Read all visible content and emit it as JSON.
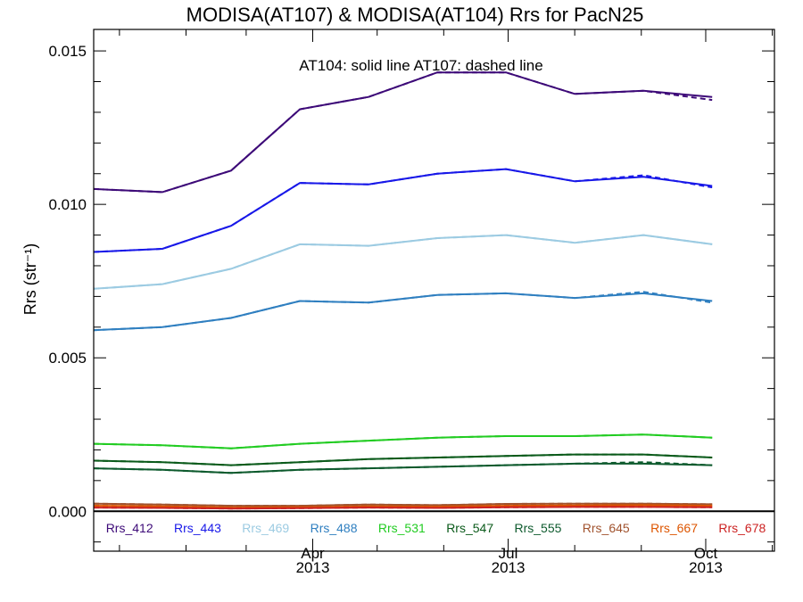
{
  "chart_data": {
    "type": "line",
    "title": "MODISA(AT107) & MODISA(AT104)  Rrs for PacN25",
    "ylabel": "Rrs (str⁻¹)",
    "xlabel": "",
    "annotation": "AT104: solid line   AT107: dashed line",
    "ylim": [
      -0.0013,
      0.0157
    ],
    "xlim": [
      "2012-12-20",
      "2013-11-02"
    ],
    "y_ticks": [
      "0.000",
      "0.005",
      "0.010",
      "0.015"
    ],
    "y_tick_values": [
      0.0,
      0.005,
      0.01,
      0.015
    ],
    "x_ticks": [
      {
        "date": "2013-04-01",
        "month": "Apr",
        "year": "2013"
      },
      {
        "date": "2013-07-01",
        "month": "Jul",
        "year": "2013"
      },
      {
        "date": "2013-10-01",
        "month": "Oct",
        "year": "2013"
      }
    ],
    "x": [
      "2012-12-20",
      "2013-01-21",
      "2013-02-22",
      "2013-03-26",
      "2013-04-27",
      "2013-05-29",
      "2013-06-30",
      "2013-08-01",
      "2013-09-02",
      "2013-10-04",
      "2013-11-02"
    ],
    "zero_line": true,
    "series": [
      {
        "name": "Rrs_412",
        "color": "#3d0a78",
        "solid": [
          0.0105,
          0.0104,
          0.0111,
          0.0131,
          0.0135,
          0.0143,
          0.0143,
          0.0136,
          0.0137,
          0.0135,
          null
        ],
        "dashed": [
          0.0105,
          0.0104,
          0.0111,
          0.0131,
          0.0135,
          0.0143,
          0.0143,
          0.0136,
          0.0137,
          0.0134,
          null
        ]
      },
      {
        "name": "Rrs_443",
        "color": "#1818e8",
        "solid": [
          0.00845,
          0.00855,
          0.0093,
          0.0107,
          0.01065,
          0.011,
          0.01115,
          0.01075,
          0.0109,
          0.0106,
          null
        ],
        "dashed": [
          0.00845,
          0.00855,
          0.0093,
          0.0107,
          0.01065,
          0.011,
          0.01115,
          0.01075,
          0.01095,
          0.01055,
          null
        ]
      },
      {
        "name": "Rrs_469",
        "color": "#9ccbe2",
        "solid": [
          0.00725,
          0.0074,
          0.0079,
          0.0087,
          0.00865,
          0.0089,
          0.009,
          0.00875,
          0.009,
          0.0087,
          null
        ],
        "dashed": [
          0.00725,
          0.0074,
          0.0079,
          0.0087,
          0.00865,
          0.0089,
          0.009,
          0.00875,
          0.009,
          0.0087,
          null
        ]
      },
      {
        "name": "Rrs_488",
        "color": "#2f7fc0",
        "solid": [
          0.0059,
          0.006,
          0.0063,
          0.00685,
          0.0068,
          0.00705,
          0.0071,
          0.00695,
          0.0071,
          0.00685,
          null
        ],
        "dashed": [
          0.0059,
          0.006,
          0.0063,
          0.00685,
          0.0068,
          0.00705,
          0.0071,
          0.00695,
          0.00715,
          0.0068,
          null
        ]
      },
      {
        "name": "Rrs_531",
        "color": "#22cc22",
        "solid": [
          0.0022,
          0.00215,
          0.00205,
          0.0022,
          0.0023,
          0.0024,
          0.00245,
          0.00245,
          0.0025,
          0.0024,
          null
        ],
        "dashed": [
          0.0022,
          0.00215,
          0.00205,
          0.0022,
          0.0023,
          0.0024,
          0.00245,
          0.00245,
          0.0025,
          0.0024,
          null
        ]
      },
      {
        "name": "Rrs_547",
        "color": "#0a5a1a",
        "solid": [
          0.00165,
          0.0016,
          0.0015,
          0.0016,
          0.0017,
          0.00175,
          0.0018,
          0.00185,
          0.00185,
          0.00175,
          null
        ],
        "dashed": [
          0.00165,
          0.0016,
          0.0015,
          0.0016,
          0.0017,
          0.00175,
          0.0018,
          0.00185,
          0.00185,
          0.00175,
          null
        ]
      },
      {
        "name": "Rrs_555",
        "color": "#0d5a2d",
        "solid": [
          0.0014,
          0.00135,
          0.00125,
          0.00135,
          0.0014,
          0.00145,
          0.0015,
          0.00155,
          0.00155,
          0.0015,
          null
        ],
        "dashed": [
          0.0014,
          0.00135,
          0.00125,
          0.00135,
          0.0014,
          0.00145,
          0.0015,
          0.00155,
          0.0016,
          0.0015,
          null
        ]
      },
      {
        "name": "Rrs_645",
        "color": "#a0522d",
        "solid": [
          0.00025,
          0.00022,
          0.00018,
          0.00018,
          0.00022,
          0.0002,
          0.00024,
          0.00025,
          0.00025,
          0.00023,
          null
        ],
        "dashed": [
          0.00025,
          0.00022,
          0.00018,
          0.00018,
          0.00022,
          0.0002,
          0.00024,
          0.00025,
          0.00025,
          0.00023,
          null
        ]
      },
      {
        "name": "Rrs_667",
        "color": "#dd5500",
        "solid": [
          0.00018,
          0.00016,
          0.00012,
          0.00013,
          0.00016,
          0.00015,
          0.00018,
          0.00019,
          0.0002,
          0.00018,
          null
        ],
        "dashed": [
          0.00018,
          0.00016,
          0.00012,
          0.00013,
          0.00016,
          0.00015,
          0.00018,
          0.00019,
          0.0002,
          0.00018,
          null
        ]
      },
      {
        "name": "Rrs_678",
        "color": "#cc2222",
        "solid": [
          0.00012,
          0.00011,
          9e-05,
          0.0001,
          0.00012,
          0.00011,
          0.00013,
          0.00014,
          0.00014,
          0.00013,
          null
        ],
        "dashed": [
          0.00012,
          0.00011,
          9e-05,
          0.0001,
          0.00012,
          0.00011,
          0.00013,
          0.00014,
          0.00014,
          0.00013,
          null
        ]
      }
    ]
  }
}
